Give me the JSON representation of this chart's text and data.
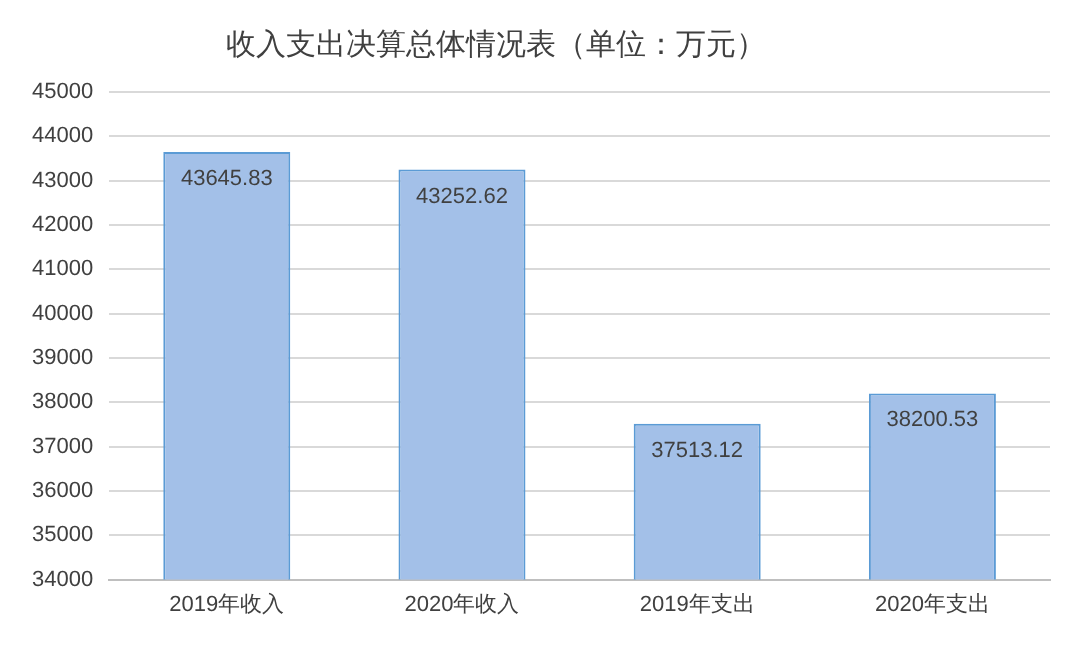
{
  "chart_data": {
    "type": "bar",
    "title": "收入支出决算总体情况表（单位：万元）",
    "categories": [
      "2019年收入",
      "2020年收入",
      "2019年支出",
      "2020年支出"
    ],
    "values": [
      43645.83,
      43252.62,
      37513.12,
      38200.53
    ],
    "color": "#a3c0e8",
    "ylim": [
      34000,
      45000
    ],
    "yticks": [
      34000,
      35000,
      36000,
      37000,
      38000,
      39000,
      40000,
      41000,
      42000,
      43000,
      44000,
      45000
    ],
    "grid": "y",
    "data_labels": true
  }
}
